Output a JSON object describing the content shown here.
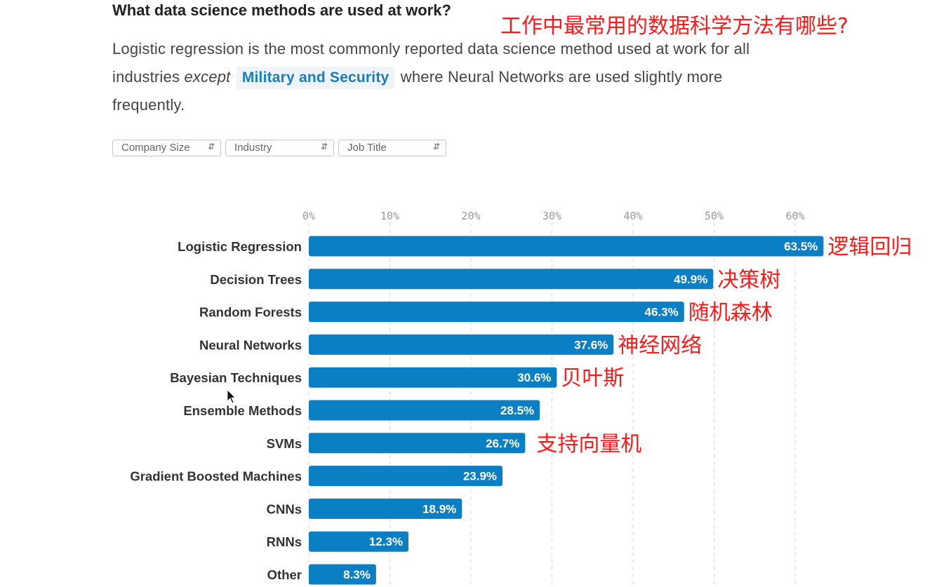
{
  "heading": "What data science methods are used at work?",
  "heading_cn": "工作中最常用的数据科学方法有哪些?",
  "description": {
    "part1": "Logistic regression is the most commonly reported data science method used at work for all industries",
    "emphasis": "except",
    "pill": "Military and Security",
    "part2": "where Neural Networks are used slightly more frequently."
  },
  "filters": [
    {
      "label": "Company Size"
    },
    {
      "label": "Industry"
    },
    {
      "label": "Job Title"
    }
  ],
  "colors": {
    "bar": "#0a7fc4",
    "annotation": "#ff1a1a",
    "grid": "#d9d9d9"
  },
  "chart_data": {
    "type": "bar",
    "orientation": "horizontal",
    "title": "",
    "xlabel": "",
    "ylabel": "",
    "xlim": [
      0,
      60
    ],
    "ticks": [
      0,
      10,
      20,
      30,
      40,
      50,
      60
    ],
    "tick_labels": [
      "0%",
      "10%",
      "20%",
      "30%",
      "40%",
      "50%",
      "60%"
    ],
    "grid": true,
    "categories": [
      "Logistic Regression",
      "Decision Trees",
      "Random Forests",
      "Neural Networks",
      "Bayesian Techniques",
      "Ensemble Methods",
      "SVMs",
      "Gradient Boosted Machines",
      "CNNs",
      "RNNs",
      "Other"
    ],
    "values": [
      63.5,
      49.9,
      46.3,
      37.6,
      30.6,
      28.5,
      26.7,
      23.9,
      18.9,
      12.3,
      8.3
    ],
    "value_labels": [
      "63.5%",
      "49.9%",
      "46.3%",
      "37.6%",
      "30.6%",
      "28.5%",
      "26.7%",
      "23.9%",
      "18.9%",
      "12.3%",
      "8.3%"
    ],
    "annotations_cn": [
      "逻辑回归",
      "决策树",
      "随机森林",
      "神经网络",
      "贝叶斯",
      "",
      "支持向量机",
      "",
      "",
      "",
      ""
    ]
  }
}
